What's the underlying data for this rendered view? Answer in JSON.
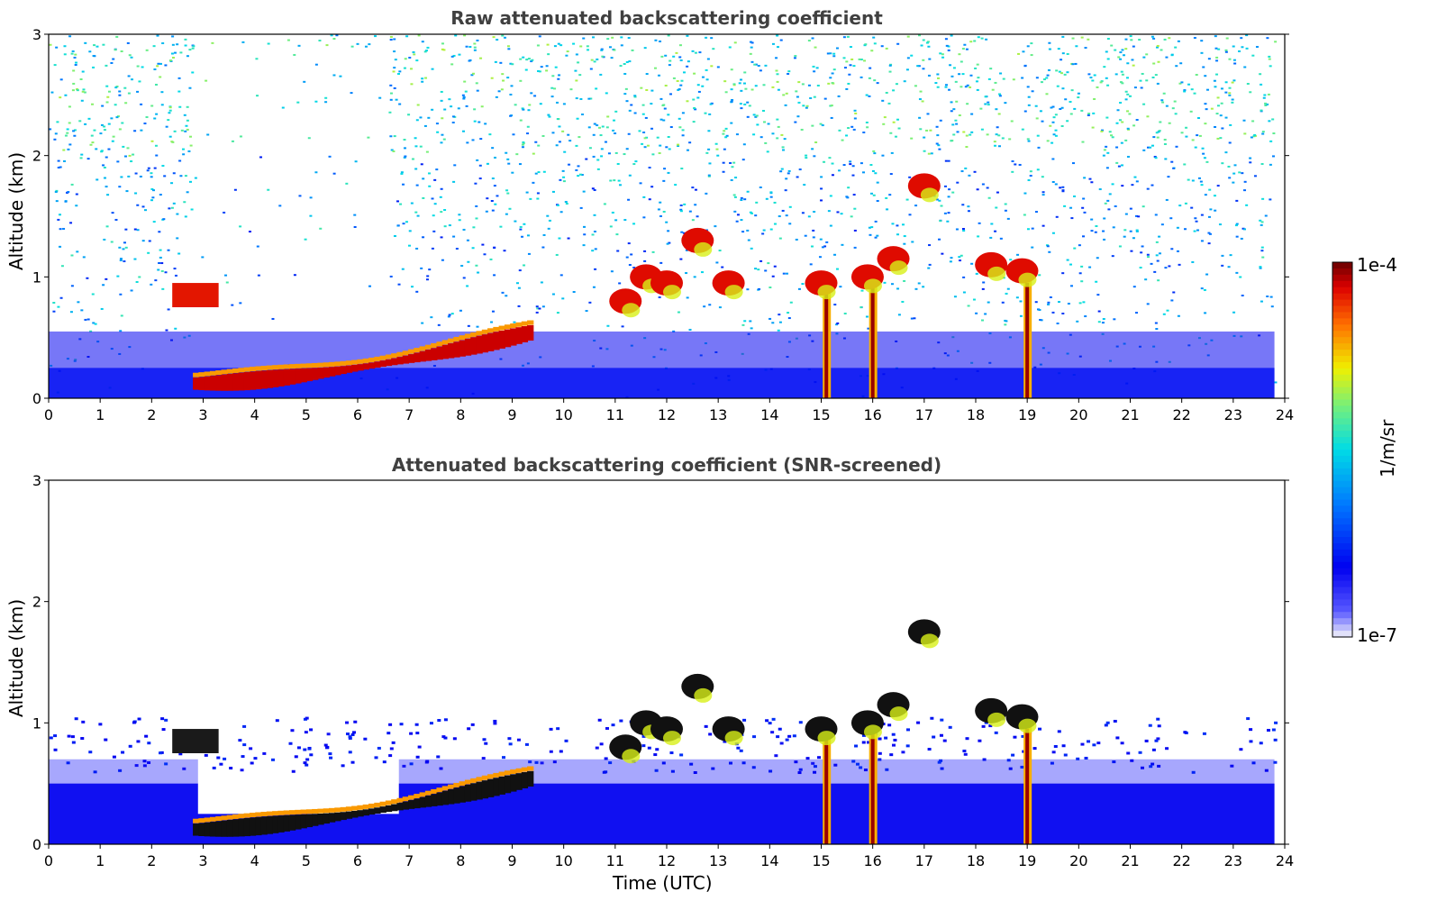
{
  "chart_data": [
    {
      "type": "heatmap",
      "title": "Raw attenuated backscattering coefficient",
      "xlabel": "",
      "ylabel": "Altitude (km)",
      "xlim": [
        0,
        24
      ],
      "ylim": [
        0,
        3
      ],
      "xticks": [
        "0",
        "1",
        "2",
        "3",
        "4",
        "5",
        "6",
        "7",
        "8",
        "9",
        "10",
        "11",
        "12",
        "13",
        "14",
        "15",
        "16",
        "17",
        "18",
        "19",
        "20",
        "21",
        "22",
        "23",
        "24"
      ],
      "yticks": [
        "0",
        "1",
        "2",
        "3"
      ],
      "screened": false,
      "features": {
        "aerosol_layer": {
          "t_start": 2.8,
          "t_end": 9.4,
          "alt_start_km": 0.12,
          "alt_end_km": 0.55
        },
        "early_cloud": {
          "t_start": 2.4,
          "t_end": 3.3,
          "alt_km": 0.87
        },
        "clouds": [
          {
            "t": 11.2,
            "alt_km": 0.8
          },
          {
            "t": 11.6,
            "alt_km": 1.0
          },
          {
            "t": 12.0,
            "alt_km": 0.95
          },
          {
            "t": 12.6,
            "alt_km": 1.3
          },
          {
            "t": 13.2,
            "alt_km": 0.95
          },
          {
            "t": 15.0,
            "alt_km": 0.95
          },
          {
            "t": 15.9,
            "alt_km": 1.0
          },
          {
            "t": 16.4,
            "alt_km": 1.15
          },
          {
            "t": 17.0,
            "alt_km": 1.75
          },
          {
            "t": 18.3,
            "alt_km": 1.1
          },
          {
            "t": 18.9,
            "alt_km": 1.05
          }
        ],
        "precip_columns_utc": [
          15.1,
          16.0,
          19.0
        ]
      }
    },
    {
      "type": "heatmap",
      "title": "Attenuated backscattering coefficient (SNR-screened)",
      "xlabel": "Time (UTC)",
      "ylabel": "Altitude (km)",
      "xlim": [
        0,
        24
      ],
      "ylim": [
        0,
        3
      ],
      "xticks": [
        "0",
        "1",
        "2",
        "3",
        "4",
        "5",
        "6",
        "7",
        "8",
        "9",
        "10",
        "11",
        "12",
        "13",
        "14",
        "15",
        "16",
        "17",
        "18",
        "19",
        "20",
        "21",
        "22",
        "23",
        "24"
      ],
      "yticks": [
        "0",
        "1",
        "2",
        "3"
      ],
      "screened": true,
      "features": {
        "aerosol_layer": {
          "t_start": 2.8,
          "t_end": 9.4,
          "alt_start_km": 0.12,
          "alt_end_km": 0.55
        },
        "early_cloud": {
          "t_start": 2.4,
          "t_end": 3.3,
          "alt_km": 0.87
        },
        "clouds": [
          {
            "t": 11.2,
            "alt_km": 0.8
          },
          {
            "t": 11.6,
            "alt_km": 1.0
          },
          {
            "t": 12.0,
            "alt_km": 0.95
          },
          {
            "t": 12.6,
            "alt_km": 1.3
          },
          {
            "t": 13.2,
            "alt_km": 0.95
          },
          {
            "t": 15.0,
            "alt_km": 0.95
          },
          {
            "t": 15.9,
            "alt_km": 1.0
          },
          {
            "t": 16.4,
            "alt_km": 1.15
          },
          {
            "t": 17.0,
            "alt_km": 1.75
          },
          {
            "t": 18.3,
            "alt_km": 1.1
          },
          {
            "t": 18.9,
            "alt_km": 1.05
          }
        ],
        "precip_columns_utc": [
          15.1,
          16.0,
          19.0
        ]
      }
    }
  ],
  "colorbar": {
    "max_label": "1e-4",
    "min_label": "1e-7",
    "unit_label": "1/m/sr"
  }
}
